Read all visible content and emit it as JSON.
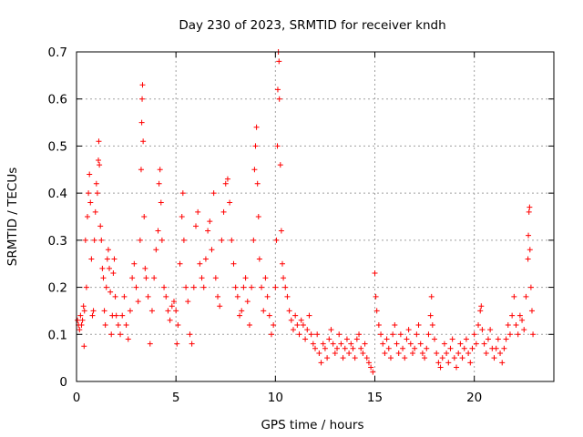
{
  "chart_data": {
    "type": "scatter",
    "title": "Day 230 of 2023, SRMTID for receiver kndh",
    "xlabel": "GPS time / hours",
    "ylabel": "SRMTID / TECUs",
    "xlim": [
      0,
      24
    ],
    "ylim": [
      0,
      0.7
    ],
    "grid": true,
    "marker": "+",
    "color": "#ff0000",
    "x_ticks": [
      0,
      5,
      10,
      15,
      20
    ],
    "y_ticks": [
      0,
      0.1,
      0.2,
      0.3,
      0.4,
      0.5,
      0.6,
      0.7
    ],
    "y_tick_labels": [
      "0",
      "0.1",
      "0.2",
      "0.3",
      "0.4",
      "0.5",
      "0.6",
      "0.7"
    ],
    "series": [
      {
        "name": "kndh",
        "points": [
          [
            0.05,
            0.13
          ],
          [
            0.1,
            0.12
          ],
          [
            0.15,
            0.11
          ],
          [
            0.2,
            0.14
          ],
          [
            0.25,
            0.12
          ],
          [
            0.3,
            0.13
          ],
          [
            0.35,
            0.16
          ],
          [
            0.38,
            0.075
          ],
          [
            0.4,
            0.15
          ],
          [
            0.45,
            0.3
          ],
          [
            0.5,
            0.2
          ],
          [
            0.55,
            0.35
          ],
          [
            0.6,
            0.4
          ],
          [
            0.65,
            0.44
          ],
          [
            0.7,
            0.38
          ],
          [
            0.75,
            0.26
          ],
          [
            0.8,
            0.14
          ],
          [
            0.85,
            0.15
          ],
          [
            0.9,
            0.3
          ],
          [
            0.95,
            0.36
          ],
          [
            1.0,
            0.42
          ],
          [
            1.05,
            0.4
          ],
          [
            1.1,
            0.47
          ],
          [
            1.12,
            0.51
          ],
          [
            1.15,
            0.46
          ],
          [
            1.2,
            0.33
          ],
          [
            1.25,
            0.3
          ],
          [
            1.3,
            0.24
          ],
          [
            1.35,
            0.22
          ],
          [
            1.4,
            0.15
          ],
          [
            1.45,
            0.12
          ],
          [
            1.5,
            0.2
          ],
          [
            1.55,
            0.26
          ],
          [
            1.6,
            0.28
          ],
          [
            1.65,
            0.24
          ],
          [
            1.7,
            0.19
          ],
          [
            1.75,
            0.1
          ],
          [
            1.8,
            0.14
          ],
          [
            1.85,
            0.23
          ],
          [
            1.9,
            0.26
          ],
          [
            1.95,
            0.18
          ],
          [
            2.0,
            0.14
          ],
          [
            2.1,
            0.12
          ],
          [
            2.2,
            0.1
          ],
          [
            2.3,
            0.14
          ],
          [
            2.4,
            0.18
          ],
          [
            2.5,
            0.12
          ],
          [
            2.6,
            0.09
          ],
          [
            2.7,
            0.15
          ],
          [
            2.8,
            0.22
          ],
          [
            2.9,
            0.25
          ],
          [
            3.0,
            0.2
          ],
          [
            3.1,
            0.17
          ],
          [
            3.2,
            0.3
          ],
          [
            3.25,
            0.45
          ],
          [
            3.28,
            0.55
          ],
          [
            3.3,
            0.6
          ],
          [
            3.32,
            0.63
          ],
          [
            3.35,
            0.51
          ],
          [
            3.4,
            0.35
          ],
          [
            3.45,
            0.24
          ],
          [
            3.5,
            0.22
          ],
          [
            3.6,
            0.18
          ],
          [
            3.7,
            0.08
          ],
          [
            3.8,
            0.15
          ],
          [
            3.9,
            0.22
          ],
          [
            4.0,
            0.28
          ],
          [
            4.1,
            0.32
          ],
          [
            4.15,
            0.42
          ],
          [
            4.2,
            0.45
          ],
          [
            4.25,
            0.38
          ],
          [
            4.3,
            0.3
          ],
          [
            4.4,
            0.2
          ],
          [
            4.5,
            0.18
          ],
          [
            4.6,
            0.15
          ],
          [
            4.7,
            0.13
          ],
          [
            4.8,
            0.16
          ],
          [
            4.9,
            0.17
          ],
          [
            5.0,
            0.15
          ],
          [
            5.05,
            0.08
          ],
          [
            5.1,
            0.12
          ],
          [
            5.2,
            0.25
          ],
          [
            5.3,
            0.35
          ],
          [
            5.35,
            0.4
          ],
          [
            5.4,
            0.3
          ],
          [
            5.5,
            0.2
          ],
          [
            5.6,
            0.17
          ],
          [
            5.7,
            0.1
          ],
          [
            5.8,
            0.08
          ],
          [
            5.9,
            0.2
          ],
          [
            6.0,
            0.33
          ],
          [
            6.1,
            0.36
          ],
          [
            6.2,
            0.25
          ],
          [
            6.3,
            0.22
          ],
          [
            6.4,
            0.2
          ],
          [
            6.5,
            0.26
          ],
          [
            6.6,
            0.32
          ],
          [
            6.7,
            0.34
          ],
          [
            6.8,
            0.28
          ],
          [
            6.9,
            0.4
          ],
          [
            7.0,
            0.22
          ],
          [
            7.1,
            0.18
          ],
          [
            7.2,
            0.16
          ],
          [
            7.3,
            0.3
          ],
          [
            7.4,
            0.36
          ],
          [
            7.5,
            0.42
          ],
          [
            7.6,
            0.43
          ],
          [
            7.7,
            0.38
          ],
          [
            7.8,
            0.3
          ],
          [
            7.9,
            0.25
          ],
          [
            8.0,
            0.2
          ],
          [
            8.1,
            0.18
          ],
          [
            8.2,
            0.14
          ],
          [
            8.3,
            0.15
          ],
          [
            8.4,
            0.2
          ],
          [
            8.5,
            0.22
          ],
          [
            8.6,
            0.17
          ],
          [
            8.7,
            0.12
          ],
          [
            8.8,
            0.2
          ],
          [
            8.9,
            0.3
          ],
          [
            8.95,
            0.45
          ],
          [
            9.0,
            0.5
          ],
          [
            9.05,
            0.54
          ],
          [
            9.1,
            0.42
          ],
          [
            9.15,
            0.35
          ],
          [
            9.2,
            0.26
          ],
          [
            9.3,
            0.2
          ],
          [
            9.4,
            0.15
          ],
          [
            9.5,
            0.22
          ],
          [
            9.6,
            0.18
          ],
          [
            9.7,
            0.14
          ],
          [
            9.8,
            0.1
          ],
          [
            9.9,
            0.12
          ],
          [
            10.0,
            0.2
          ],
          [
            10.05,
            0.3
          ],
          [
            10.1,
            0.5
          ],
          [
            10.12,
            0.62
          ],
          [
            10.15,
            0.7
          ],
          [
            10.18,
            0.68
          ],
          [
            10.2,
            0.6
          ],
          [
            10.25,
            0.46
          ],
          [
            10.3,
            0.32
          ],
          [
            10.35,
            0.25
          ],
          [
            10.4,
            0.22
          ],
          [
            10.5,
            0.2
          ],
          [
            10.6,
            0.18
          ],
          [
            10.7,
            0.15
          ],
          [
            10.8,
            0.13
          ],
          [
            10.9,
            0.11
          ],
          [
            11.0,
            0.14
          ],
          [
            11.1,
            0.12
          ],
          [
            11.2,
            0.1
          ],
          [
            11.3,
            0.13
          ],
          [
            11.4,
            0.12
          ],
          [
            11.5,
            0.09
          ],
          [
            11.6,
            0.11
          ],
          [
            11.7,
            0.14
          ],
          [
            11.8,
            0.1
          ],
          [
            11.9,
            0.08
          ],
          [
            12.0,
            0.07
          ],
          [
            12.1,
            0.1
          ],
          [
            12.2,
            0.06
          ],
          [
            12.3,
            0.04
          ],
          [
            12.4,
            0.08
          ],
          [
            12.5,
            0.07
          ],
          [
            12.6,
            0.05
          ],
          [
            12.7,
            0.09
          ],
          [
            12.8,
            0.11
          ],
          [
            12.9,
            0.08
          ],
          [
            13.0,
            0.06
          ],
          [
            13.1,
            0.07
          ],
          [
            13.2,
            0.1
          ],
          [
            13.3,
            0.08
          ],
          [
            13.4,
            0.05
          ],
          [
            13.5,
            0.07
          ],
          [
            13.6,
            0.09
          ],
          [
            13.7,
            0.06
          ],
          [
            13.8,
            0.08
          ],
          [
            13.9,
            0.07
          ],
          [
            14.0,
            0.05
          ],
          [
            14.1,
            0.09
          ],
          [
            14.2,
            0.1
          ],
          [
            14.3,
            0.07
          ],
          [
            14.4,
            0.06
          ],
          [
            14.5,
            0.08
          ],
          [
            14.6,
            0.05
          ],
          [
            14.7,
            0.04
          ],
          [
            14.8,
            0.03
          ],
          [
            14.9,
            0.02
          ],
          [
            15.0,
            0.23
          ],
          [
            15.05,
            0.18
          ],
          [
            15.1,
            0.15
          ],
          [
            15.2,
            0.12
          ],
          [
            15.3,
            0.1
          ],
          [
            15.4,
            0.08
          ],
          [
            15.5,
            0.06
          ],
          [
            15.6,
            0.09
          ],
          [
            15.7,
            0.07
          ],
          [
            15.8,
            0.05
          ],
          [
            15.9,
            0.1
          ],
          [
            16.0,
            0.12
          ],
          [
            16.1,
            0.08
          ],
          [
            16.2,
            0.06
          ],
          [
            16.3,
            0.1
          ],
          [
            16.4,
            0.07
          ],
          [
            16.5,
            0.05
          ],
          [
            16.6,
            0.09
          ],
          [
            16.7,
            0.11
          ],
          [
            16.8,
            0.08
          ],
          [
            16.9,
            0.06
          ],
          [
            17.0,
            0.07
          ],
          [
            17.1,
            0.1
          ],
          [
            17.2,
            0.12
          ],
          [
            17.3,
            0.08
          ],
          [
            17.4,
            0.06
          ],
          [
            17.5,
            0.05
          ],
          [
            17.6,
            0.07
          ],
          [
            17.7,
            0.1
          ],
          [
            17.8,
            0.14
          ],
          [
            17.85,
            0.18
          ],
          [
            17.9,
            0.12
          ],
          [
            18.0,
            0.09
          ],
          [
            18.1,
            0.06
          ],
          [
            18.2,
            0.04
          ],
          [
            18.3,
            0.03
          ],
          [
            18.4,
            0.05
          ],
          [
            18.5,
            0.08
          ],
          [
            18.6,
            0.06
          ],
          [
            18.7,
            0.04
          ],
          [
            18.8,
            0.07
          ],
          [
            18.9,
            0.09
          ],
          [
            19.0,
            0.05
          ],
          [
            19.1,
            0.03
          ],
          [
            19.2,
            0.06
          ],
          [
            19.3,
            0.08
          ],
          [
            19.4,
            0.05
          ],
          [
            19.5,
            0.07
          ],
          [
            19.6,
            0.09
          ],
          [
            19.7,
            0.06
          ],
          [
            19.8,
            0.04
          ],
          [
            19.9,
            0.07
          ],
          [
            20.0,
            0.1
          ],
          [
            20.1,
            0.08
          ],
          [
            20.2,
            0.12
          ],
          [
            20.3,
            0.15
          ],
          [
            20.35,
            0.16
          ],
          [
            20.4,
            0.11
          ],
          [
            20.5,
            0.08
          ],
          [
            20.6,
            0.06
          ],
          [
            20.7,
            0.09
          ],
          [
            20.8,
            0.11
          ],
          [
            20.9,
            0.07
          ],
          [
            21.0,
            0.05
          ],
          [
            21.1,
            0.07
          ],
          [
            21.2,
            0.09
          ],
          [
            21.3,
            0.06
          ],
          [
            21.4,
            0.04
          ],
          [
            21.5,
            0.07
          ],
          [
            21.6,
            0.09
          ],
          [
            21.7,
            0.12
          ],
          [
            21.8,
            0.1
          ],
          [
            21.9,
            0.14
          ],
          [
            22.0,
            0.18
          ],
          [
            22.1,
            0.12
          ],
          [
            22.2,
            0.1
          ],
          [
            22.3,
            0.14
          ],
          [
            22.4,
            0.13
          ],
          [
            22.5,
            0.11
          ],
          [
            22.6,
            0.18
          ],
          [
            22.7,
            0.26
          ],
          [
            22.72,
            0.31
          ],
          [
            22.75,
            0.36
          ],
          [
            22.78,
            0.37
          ],
          [
            22.8,
            0.28
          ],
          [
            22.85,
            0.2
          ],
          [
            22.9,
            0.15
          ],
          [
            22.95,
            0.1
          ]
        ]
      }
    ]
  }
}
